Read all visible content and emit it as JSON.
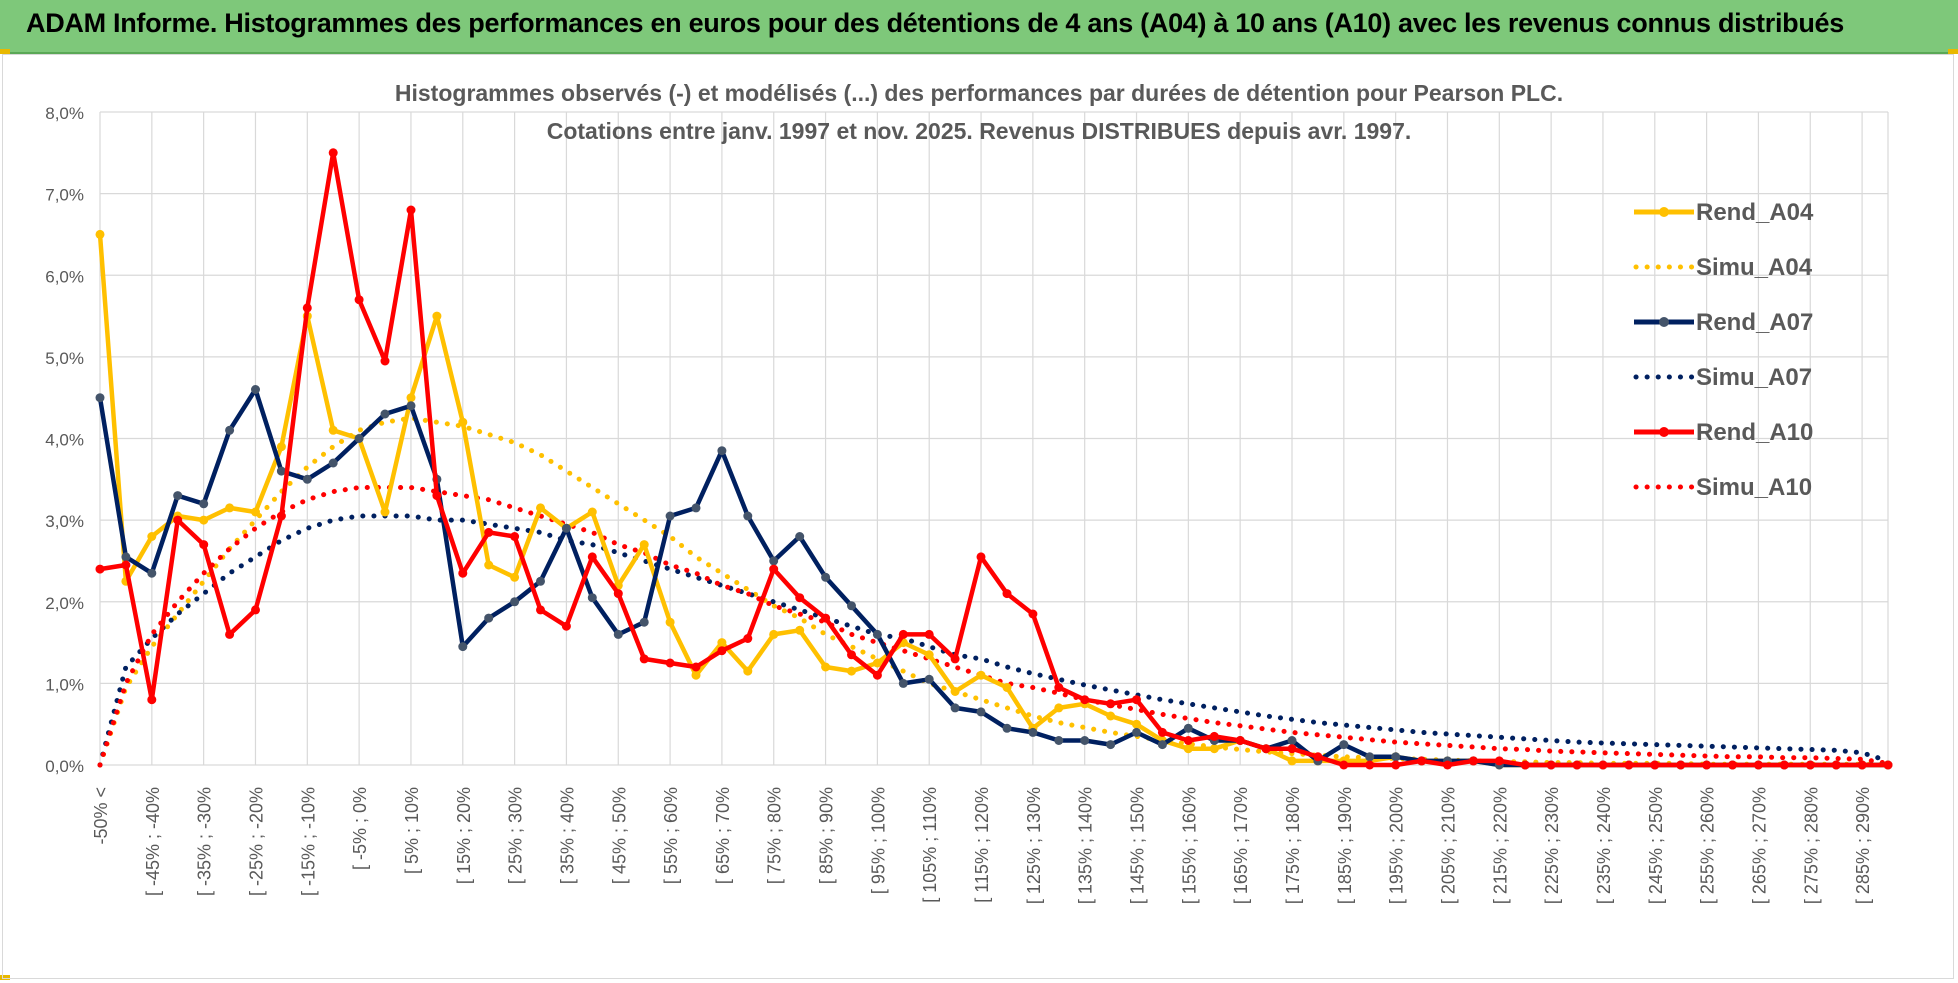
{
  "banner": {
    "title": "ADAM Informe. Histogrammes des performances en euros pour des détentions de 4 ans (A04) à 10 ans (A10) avec les revenus connus distribués"
  },
  "colors": {
    "A04": "#ffc000",
    "A07": "#002060",
    "A10": "#ff0000",
    "banner": "#7ec87a",
    "marker_A07": "#44546a"
  },
  "chart_data": {
    "type": "line",
    "title": "Histogrammes observés (-) et modélisés (...) des performances par durées de détention pour Pearson PLC.",
    "subtitle": "Cotations entre janv. 1997 et nov. 2025. Revenus DISTRIBUES depuis avr. 1997.",
    "xlabel": "",
    "ylabel": "",
    "ylim": [
      0,
      8
    ],
    "y_ticks": [
      "0,0%",
      "1,0%",
      "2,0%",
      "3,0%",
      "4,0%",
      "5,0%",
      "6,0%",
      "7,0%",
      "8,0%"
    ],
    "x_tick_labels": [
      "-50% <",
      "[ -45% ; -40%",
      "[ -35% ; -30%",
      "[ -25% ; -20%",
      "[ -15% ; -10%",
      "[ -5% ; 0%",
      "[ 5% ; 10%",
      "[ 15% ; 20%",
      "[ 25% ; 30%",
      "[ 35% ; 40%",
      "[ 45% ; 50%",
      "[ 55% ; 60%",
      "[ 65% ; 70%",
      "[ 75% ; 80%",
      "[ 85% ; 90%",
      "[ 95% ; 100%",
      "[ 105% ; 110%",
      "[ 115% ; 120%",
      "[ 125% ; 130%",
      "[ 135% ; 140%",
      "[ 145% ; 150%",
      "[ 155% ; 160%",
      "[ 165% ; 170%",
      "[ 175% ; 180%",
      "[ 185% ; 190%",
      "[ 195% ; 200%",
      "[ 205% ; 210%",
      "[ 215% ; 220%",
      "[ 225% ; 230%",
      "[ 235% ; 240%",
      "[ 245% ; 250%",
      "[ 255% ; 260%",
      "[ 265% ; 270%",
      "[ 275% ; 280%",
      "[ 285% ; 290%"
    ],
    "category_count": 70,
    "grid": true,
    "legend_position": "right",
    "series": [
      {
        "name": "Rend_A04",
        "style": "solid",
        "color_key": "A04",
        "values": [
          6.5,
          2.25,
          2.8,
          3.05,
          3.0,
          3.15,
          3.1,
          3.9,
          5.5,
          4.1,
          4.0,
          3.1,
          4.5,
          5.5,
          4.2,
          2.45,
          2.3,
          3.15,
          2.9,
          3.1,
          2.2,
          2.7,
          1.75,
          1.1,
          1.5,
          1.15,
          1.6,
          1.65,
          1.2,
          1.15,
          1.25,
          1.5,
          1.35,
          0.9,
          1.1,
          0.95,
          0.45,
          0.7,
          0.75,
          0.6,
          0.5,
          0.3,
          0.2,
          0.2,
          0.3,
          0.2,
          0.05,
          0.05,
          0.05,
          0.05,
          0.1,
          0.05,
          0.05,
          0.05,
          0.0,
          0.0,
          0.0,
          0.0,
          0.0,
          0.0,
          0.0,
          0.0,
          0.0,
          0.0,
          0.0,
          0.0,
          0.0,
          0.0,
          0.0,
          0.0
        ]
      },
      {
        "name": "Simu_A04",
        "style": "dotted",
        "color_key": "A04",
        "values": [
          0.0,
          0.95,
          1.45,
          1.85,
          2.25,
          2.65,
          3.0,
          3.35,
          3.65,
          3.9,
          4.1,
          4.2,
          4.25,
          4.2,
          4.15,
          4.05,
          3.95,
          3.8,
          3.6,
          3.4,
          3.2,
          3.0,
          2.8,
          2.55,
          2.35,
          2.15,
          1.95,
          1.8,
          1.6,
          1.45,
          1.3,
          1.15,
          1.0,
          0.9,
          0.8,
          0.7,
          0.6,
          0.52,
          0.46,
          0.4,
          0.35,
          0.3,
          0.26,
          0.22,
          0.19,
          0.16,
          0.14,
          0.12,
          0.1,
          0.09,
          0.08,
          0.07,
          0.06,
          0.05,
          0.04,
          0.04,
          0.03,
          0.03,
          0.02,
          0.02,
          0.02,
          0.02,
          0.01,
          0.01,
          0.01,
          0.01,
          0.01,
          0.01,
          0.01,
          0.0
        ]
      },
      {
        "name": "Rend_A07",
        "style": "solid",
        "color_key": "A07",
        "values": [
          4.5,
          2.55,
          2.35,
          3.3,
          3.2,
          4.1,
          4.6,
          3.6,
          3.5,
          3.7,
          4.0,
          4.3,
          4.4,
          3.5,
          1.45,
          1.8,
          2.0,
          2.25,
          2.9,
          2.05,
          1.6,
          1.75,
          3.05,
          3.15,
          3.85,
          3.05,
          2.5,
          2.8,
          2.3,
          1.95,
          1.6,
          1.0,
          1.05,
          0.7,
          0.65,
          0.45,
          0.4,
          0.3,
          0.3,
          0.25,
          0.4,
          0.25,
          0.45,
          0.3,
          0.3,
          0.2,
          0.3,
          0.05,
          0.25,
          0.1,
          0.1,
          0.05,
          0.05,
          0.05,
          0.0,
          0.0,
          0.0,
          0.0,
          0.0,
          0.0,
          0.0,
          0.0,
          0.0,
          0.0,
          0.0,
          0.0,
          0.0,
          0.0,
          0.0,
          0.0
        ]
      },
      {
        "name": "Simu_A07",
        "style": "dotted",
        "color_key": "A07",
        "values": [
          0.0,
          1.2,
          1.55,
          1.85,
          2.1,
          2.35,
          2.55,
          2.75,
          2.9,
          3.0,
          3.05,
          3.05,
          3.05,
          3.0,
          3.0,
          2.95,
          2.9,
          2.85,
          2.75,
          2.7,
          2.6,
          2.5,
          2.4,
          2.3,
          2.2,
          2.1,
          2.0,
          1.9,
          1.8,
          1.7,
          1.6,
          1.55,
          1.45,
          1.35,
          1.3,
          1.2,
          1.12,
          1.05,
          0.98,
          0.92,
          0.86,
          0.8,
          0.75,
          0.7,
          0.65,
          0.6,
          0.56,
          0.52,
          0.49,
          0.46,
          0.43,
          0.4,
          0.38,
          0.36,
          0.34,
          0.32,
          0.3,
          0.28,
          0.27,
          0.26,
          0.25,
          0.24,
          0.23,
          0.22,
          0.21,
          0.2,
          0.19,
          0.18,
          0.15,
          0.05
        ]
      },
      {
        "name": "Rend_A10",
        "style": "solid",
        "color_key": "A10",
        "values": [
          2.4,
          2.45,
          0.8,
          3.0,
          2.7,
          1.6,
          1.9,
          3.05,
          5.6,
          7.5,
          5.7,
          4.95,
          6.8,
          3.3,
          2.35,
          2.85,
          2.8,
          1.9,
          1.7,
          2.55,
          2.1,
          1.3,
          1.25,
          1.2,
          1.4,
          1.55,
          2.4,
          2.05,
          1.8,
          1.35,
          1.1,
          1.6,
          1.6,
          1.3,
          2.55,
          2.1,
          1.85,
          0.95,
          0.8,
          0.75,
          0.8,
          0.4,
          0.3,
          0.35,
          0.3,
          0.2,
          0.2,
          0.1,
          0.0,
          0.0,
          0.0,
          0.05,
          0.0,
          0.05,
          0.05,
          0.0,
          0.0,
          0.0,
          0.0,
          0.0,
          0.0,
          0.0,
          0.0,
          0.0,
          0.0,
          0.0,
          0.0,
          0.0,
          0.0,
          0.0
        ]
      },
      {
        "name": "Simu_A10",
        "style": "dotted",
        "color_key": "A10",
        "values": [
          0.0,
          1.0,
          1.6,
          2.0,
          2.35,
          2.65,
          2.9,
          3.1,
          3.25,
          3.35,
          3.4,
          3.4,
          3.4,
          3.35,
          3.3,
          3.25,
          3.15,
          3.05,
          2.95,
          2.85,
          2.7,
          2.6,
          2.45,
          2.35,
          2.2,
          2.1,
          1.95,
          1.85,
          1.75,
          1.6,
          1.5,
          1.4,
          1.3,
          1.2,
          1.1,
          1.0,
          0.95,
          0.88,
          0.8,
          0.74,
          0.68,
          0.62,
          0.57,
          0.52,
          0.48,
          0.44,
          0.4,
          0.37,
          0.34,
          0.31,
          0.28,
          0.26,
          0.24,
          0.22,
          0.2,
          0.19,
          0.17,
          0.16,
          0.15,
          0.14,
          0.13,
          0.12,
          0.11,
          0.1,
          0.1,
          0.09,
          0.09,
          0.08,
          0.07,
          0.02
        ]
      }
    ]
  }
}
